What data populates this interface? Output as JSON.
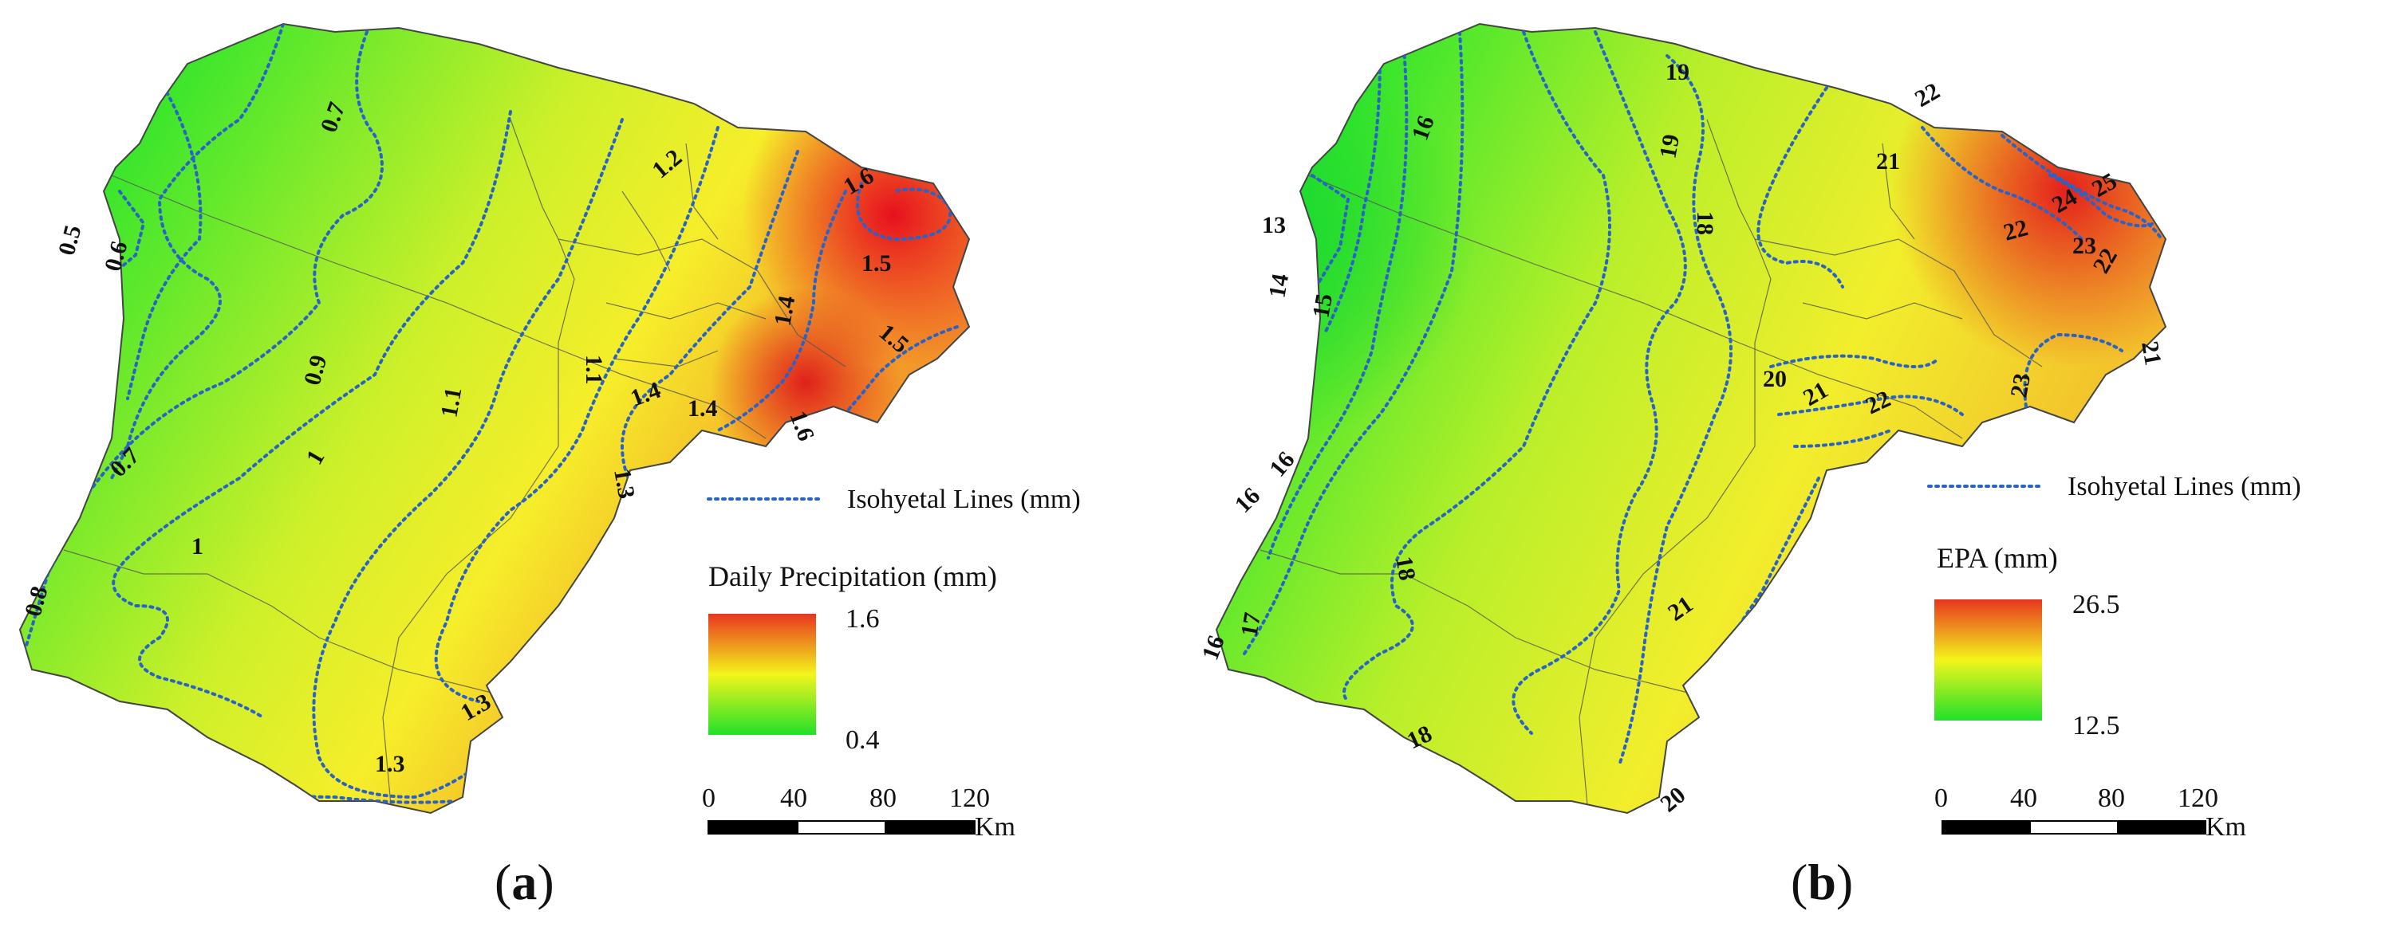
{
  "panels": [
    {
      "id": "a",
      "caption_letter": "a",
      "legend": {
        "line_label": "Isohyetal Lines (mm)",
        "title": "Daily Precipitation (mm)",
        "max": "1.6",
        "min": "0.4",
        "colors": {
          "low": "#22e02a",
          "mid": "#f3f51c",
          "high": "#e8361f"
        }
      },
      "scale_bar": {
        "ticks": [
          "0",
          "40",
          "80",
          "120"
        ],
        "unit": "Km"
      },
      "contour_labels": [
        "0.5",
        "0.6",
        "0.7",
        "0.7",
        "0.8",
        "0.9",
        "1",
        "1",
        "1.1",
        "1.1",
        "1.2",
        "1.3",
        "1.3",
        "1.3",
        "1.4",
        "1.4",
        "1.4",
        "1.5",
        "1.5",
        "1.6",
        "1.6"
      ]
    },
    {
      "id": "b",
      "caption_letter": "b",
      "legend": {
        "line_label": "Isohyetal Lines (mm)",
        "title": "EPA (mm)",
        "max": "26.5",
        "min": "12.5",
        "colors": {
          "low": "#22e02a",
          "mid": "#f3f51c",
          "high": "#e8361f"
        }
      },
      "scale_bar": {
        "ticks": [
          "0",
          "40",
          "80",
          "120"
        ],
        "unit": "Km"
      },
      "contour_labels": [
        "13",
        "14",
        "15",
        "16",
        "16",
        "16",
        "16",
        "17",
        "18",
        "18",
        "18",
        "19",
        "19",
        "20",
        "20",
        "21",
        "21",
        "21",
        "21",
        "22",
        "22",
        "22",
        "22",
        "23",
        "23",
        "24",
        "25"
      ]
    }
  ]
}
